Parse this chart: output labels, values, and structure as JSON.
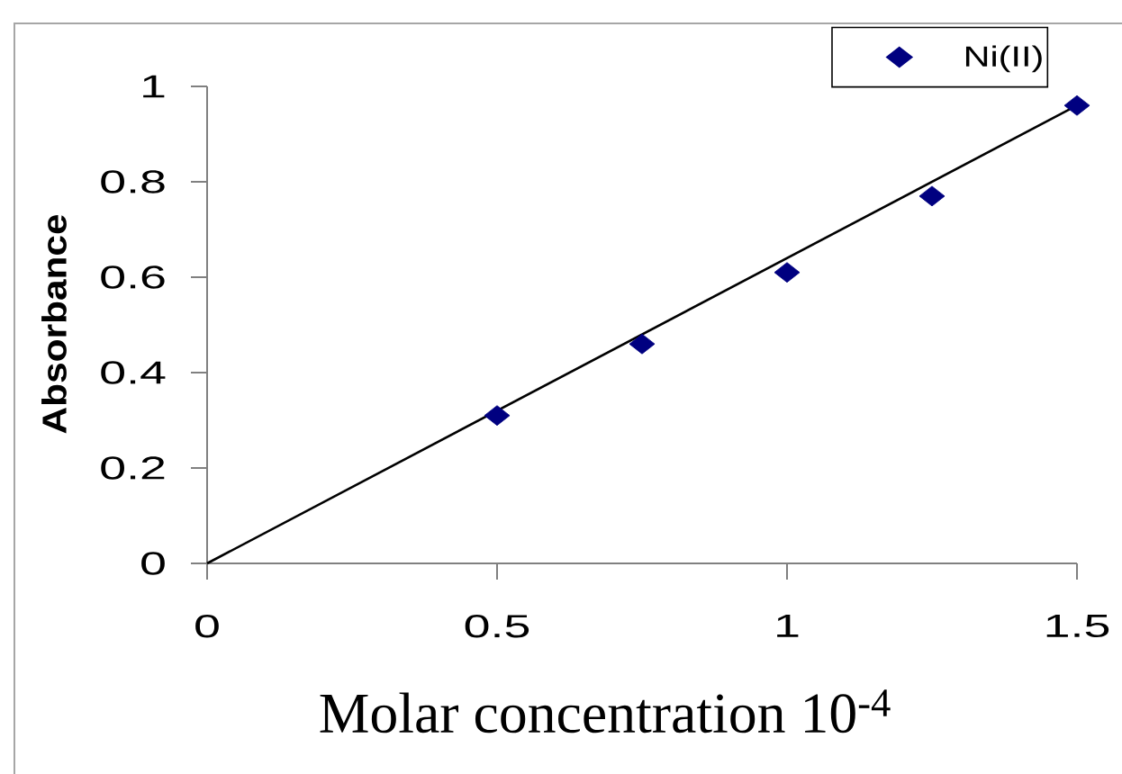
{
  "chart_data": {
    "type": "scatter",
    "xlabel": "Molar concentration 10$^{-4}$",
    "ylabel": "Absorbance",
    "x": [
      0.5,
      0.75,
      1,
      1.25,
      1.5
    ],
    "series": [
      {
        "name": "Ni(II)",
        "color": "#000080",
        "marker": "diamond",
        "values": [
          0.31,
          0.46,
          0.61,
          0.77,
          0.96
        ]
      },
      {
        "type": "line",
        "x": [
          0,
          1.5
        ],
        "color": "#000000",
        "marker": "none",
        "line_style": "solid",
        "values": [
          0,
          0.96
        ]
      }
    ],
    "xlim": [
      0,
      1.5
    ],
    "ylim": [
      0,
      1
    ],
    "xticks": [
      0,
      0.5,
      1,
      1.5
    ],
    "yticks": [
      0,
      0.2,
      0.4,
      0.6,
      0.8,
      1
    ],
    "legend": "top right",
    "grid": false
  }
}
